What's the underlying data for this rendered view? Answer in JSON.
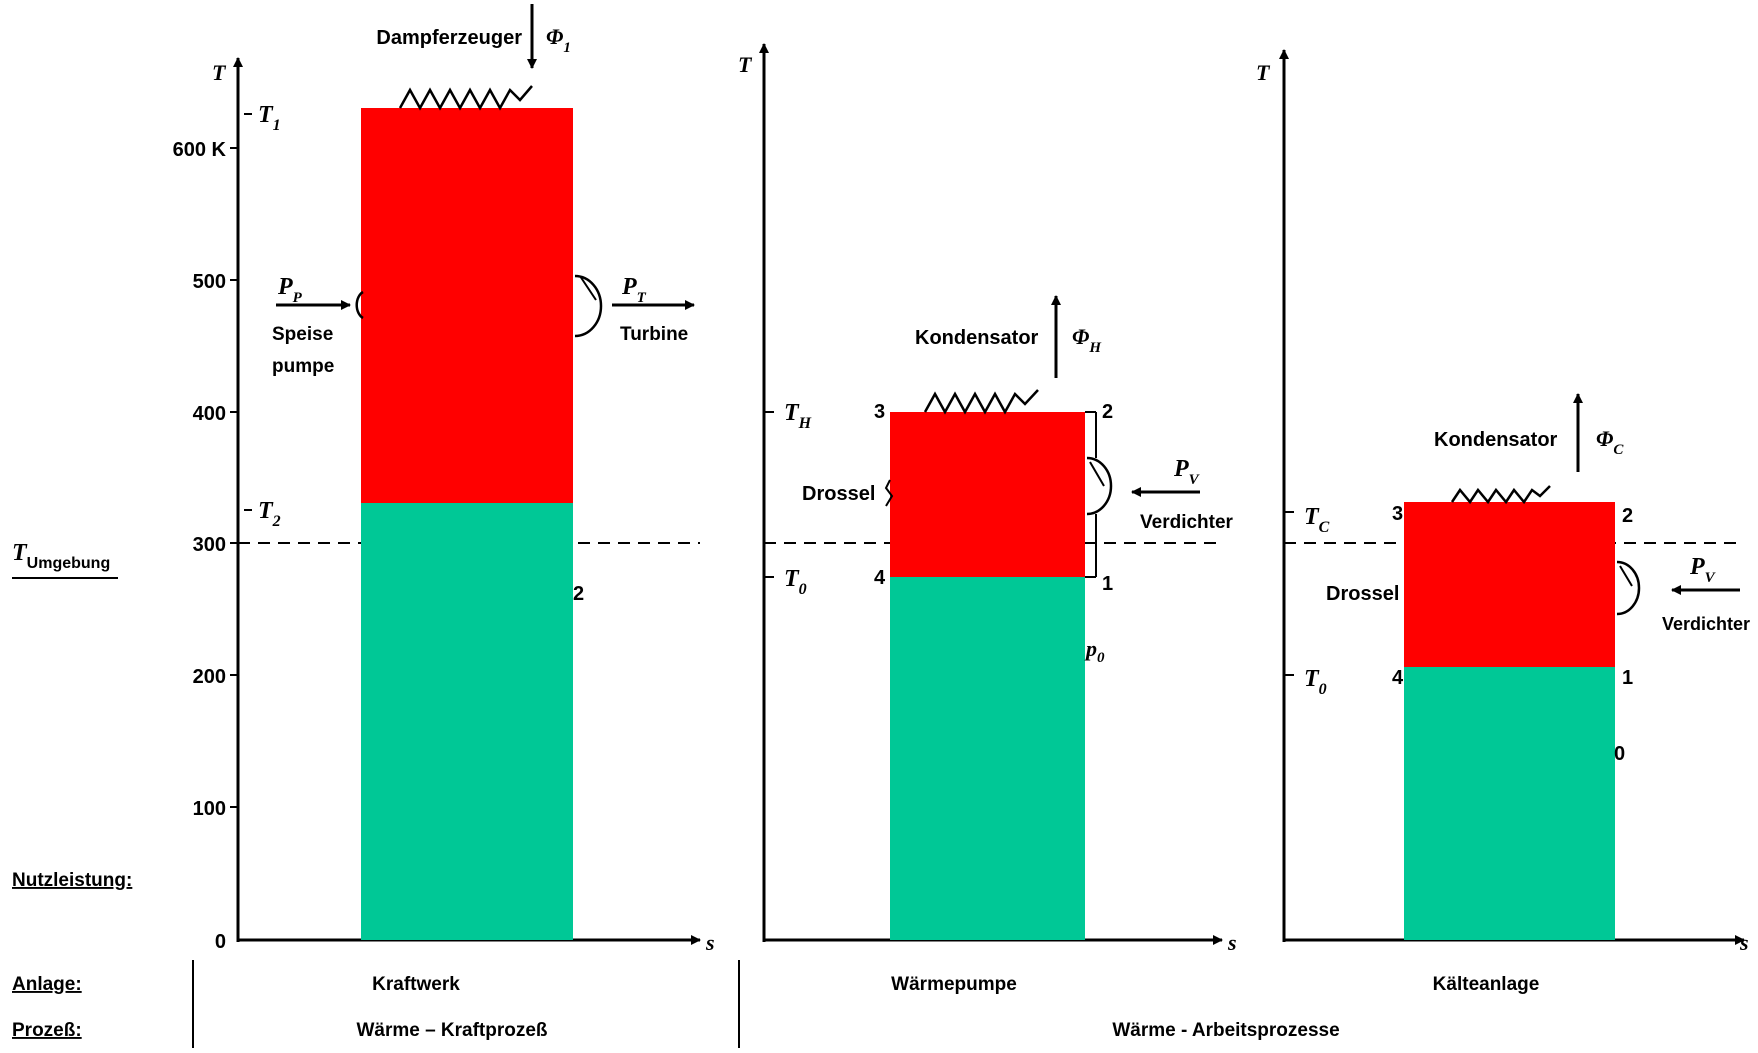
{
  "colors": {
    "red": "#ff0000",
    "green": "#00c896",
    "ink": "#000000"
  },
  "panel1": {
    "t_axis": "T",
    "s_axis": "s",
    "t1": "T",
    "t1_sub": "1",
    "t2": "T",
    "t2_sub": "2",
    "y_ticks": [
      "600 K",
      "500",
      "400",
      "300",
      "200",
      "100",
      "0"
    ],
    "steam_gen": "Dampferzeuger",
    "phi": "Φ",
    "phi_sub": "1",
    "pp": "P",
    "pp_sub": "P",
    "pump_1": "Speise",
    "pump_2": "pumpe",
    "pt": "P",
    "pt_sub": "T",
    "turbine": "Turbine",
    "hidden_2": "2"
  },
  "panel2": {
    "t_axis": "T",
    "s_axis": "s",
    "th": "T",
    "th_sub": "H",
    "t0": "T",
    "t0_sub": "0",
    "condenser": "Kondensator",
    "phi": "Φ",
    "phi_sub": "H",
    "throttle": "Drossel",
    "pv": "P",
    "pv_sub": "V",
    "compressor": "Verdichter",
    "pts": [
      "3",
      "2",
      "4",
      "1"
    ],
    "p0": "p",
    "p0_sub": "0"
  },
  "panel3": {
    "t_axis": "T",
    "s_axis": "s",
    "tc": "T",
    "tc_sub": "C",
    "t0": "T",
    "t0_sub": "0",
    "condenser": "Kondensator",
    "phi": "Φ",
    "phi_sub": "C",
    "throttle": "Drossel",
    "pv": "P",
    "pv_sub": "V",
    "compressor": "Verdichter",
    "pts": [
      "3",
      "2",
      "4",
      "1"
    ],
    "hidden_0": "0"
  },
  "left_labels": {
    "t_env": "T",
    "t_env_sub": "Umgebung",
    "nutz": "Nutzleistung:",
    "anlage": "Anlage:",
    "prozess": "Prozeß:"
  },
  "bottom": {
    "kraftwerk": "Kraftwerk",
    "waermepumpe": "Wärmepumpe",
    "kaelteanlage": "Kälteanlage",
    "proc1": "Wärme – Kraftprozeß",
    "proc2": "Wärme - Arbeitsprozesse"
  }
}
